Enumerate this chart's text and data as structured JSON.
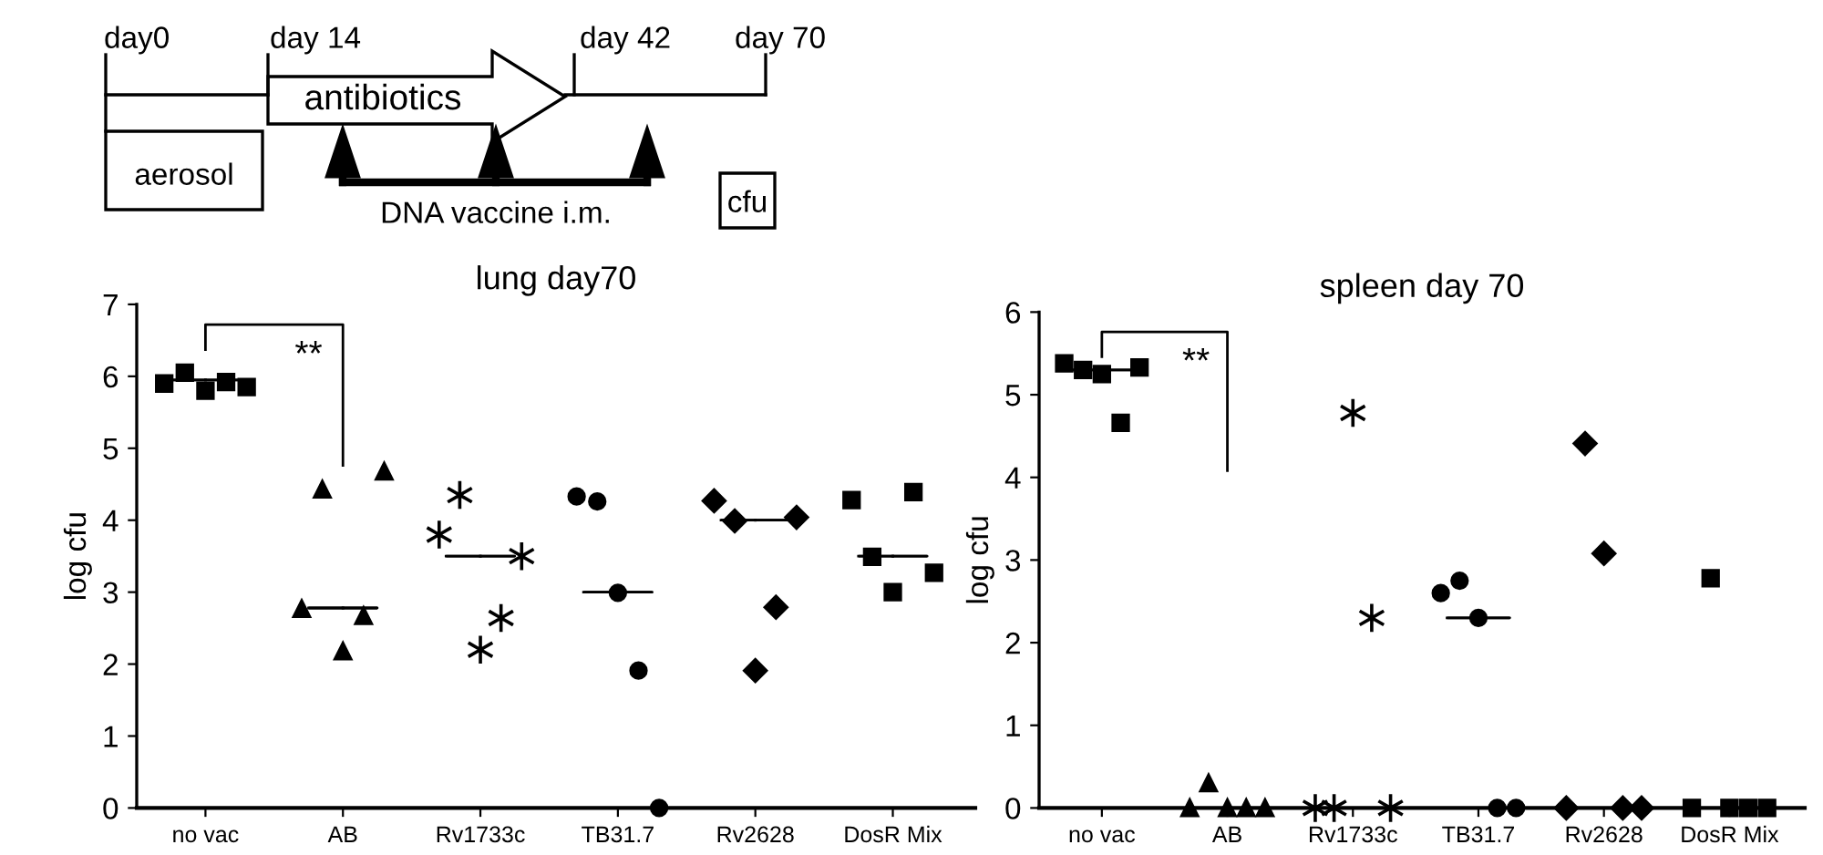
{
  "chart_data": [
    {
      "type": "other",
      "annotations": [
        "day0",
        "day 14",
        "day 42",
        "day 70",
        "antibiotics",
        "aerosol",
        "cfu",
        "DNA vaccine i.m."
      ]
    },
    {
      "type": "scatter",
      "title": "lung day70",
      "ylabel": "log cfu",
      "categories": [
        "no vac",
        "AB",
        "Rv1733c",
        "TB31.7",
        "Rv2628",
        "DosR Mix"
      ],
      "ylim": [
        0,
        7
      ],
      "yticks": [
        0,
        1,
        2,
        3,
        4,
        5,
        6,
        7
      ],
      "grid": false,
      "annotations": [
        "**"
      ],
      "series": [
        {
          "x": [
            "no vac",
            "no vac",
            "no vac",
            "no vac",
            "no vac"
          ],
          "values": [
            5.9,
            6.05,
            5.8,
            5.92,
            5.85
          ],
          "marker": "square",
          "color": "#000000"
        },
        {
          "x": [
            "AB",
            "AB",
            "AB",
            "AB",
            "AB"
          ],
          "values": [
            2.77,
            4.43,
            2.18,
            2.67,
            4.68
          ],
          "marker": "triangle",
          "color": "#000000"
        },
        {
          "x": [
            "Rv1733c",
            "Rv1733c",
            "Rv1733c",
            "Rv1733c",
            "Rv1733c"
          ],
          "values": [
            3.8,
            4.35,
            2.2,
            2.64,
            3.5
          ],
          "marker": "cross",
          "color": "#000000"
        },
        {
          "x": [
            "TB31.7",
            "TB31.7",
            "TB31.7",
            "TB31.7",
            "TB31.7"
          ],
          "values": [
            4.33,
            4.26,
            2.99,
            1.91,
            0
          ],
          "marker": "circle",
          "color": "#000000"
        },
        {
          "x": [
            "Rv2628",
            "Rv2628",
            "Rv2628",
            "Rv2628",
            "Rv2628"
          ],
          "values": [
            4.27,
            3.99,
            1.91,
            2.79,
            4.04
          ],
          "marker": "diamond",
          "color": "#000000"
        },
        {
          "x": [
            "DosR Mix",
            "DosR Mix",
            "DosR Mix",
            "DosR Mix",
            "DosR Mix"
          ],
          "values": [
            4.28,
            3.49,
            3.0,
            4.39,
            3.27
          ],
          "marker": "square",
          "color": "#000000"
        },
        {
          "type": "box",
          "color": "#000000",
          "boxes": [
            {
              "low": 5.95,
              "q1": 5.95,
              "median": 5.95,
              "q3": 5.95,
              "high": 5.95
            },
            {
              "low": 2.78,
              "q1": 2.78,
              "median": 2.78,
              "q3": 2.78,
              "high": 2.78
            },
            {
              "low": 3.5,
              "q1": 3.5,
              "median": 3.5,
              "q3": 3.5,
              "high": 3.5
            },
            {
              "low": 3.0,
              "q1": 3.0,
              "median": 3.0,
              "q3": 3.0,
              "high": 3.0
            },
            {
              "low": 4.0,
              "q1": 4.0,
              "median": 4.0,
              "q3": 4.0,
              "high": 4.0
            },
            {
              "low": 3.5,
              "q1": 3.5,
              "median": 3.5,
              "q3": 3.5,
              "high": 3.5
            }
          ]
        }
      ]
    },
    {
      "type": "scatter",
      "title": "spleen day 70",
      "ylabel": "log cfu",
      "categories": [
        "no vac",
        "AB",
        "Rv1733c",
        "TB31.7",
        "Rv2628",
        "DosR Mix"
      ],
      "ylim": [
        0,
        6
      ],
      "yticks": [
        0,
        1,
        2,
        3,
        4,
        5,
        6
      ],
      "grid": false,
      "annotations": [
        "**"
      ],
      "series": [
        {
          "x": [
            "no vac",
            "no vac",
            "no vac",
            "no vac",
            "no vac"
          ],
          "values": [
            5.38,
            5.3,
            5.25,
            4.66,
            5.33
          ],
          "marker": "square",
          "color": "#000000"
        },
        {
          "x": [
            "AB",
            "AB",
            "AB",
            "AB",
            "AB"
          ],
          "values": [
            0,
            0.3,
            0,
            0,
            0
          ],
          "marker": "triangle",
          "color": "#000000"
        },
        {
          "x": [
            "Rv1733c",
            "Rv1733c",
            "Rv1733c",
            "Rv1733c",
            "Rv1733c"
          ],
          "values": [
            0,
            0,
            4.78,
            2.3,
            0
          ],
          "marker": "cross",
          "color": "#000000"
        },
        {
          "x": [
            "TB31.7",
            "TB31.7",
            "TB31.7",
            "TB31.7",
            "TB31.7"
          ],
          "values": [
            2.6,
            2.75,
            2.3,
            0,
            0
          ],
          "marker": "circle",
          "color": "#000000"
        },
        {
          "x": [
            "Rv2628",
            "Rv2628",
            "Rv2628",
            "Rv2628",
            "Rv2628"
          ],
          "values": [
            0,
            4.41,
            3.08,
            0,
            0
          ],
          "marker": "diamond",
          "color": "#000000"
        },
        {
          "x": [
            "DosR Mix",
            "DosR Mix",
            "DosR Mix",
            "DosR Mix",
            "DosR Mix"
          ],
          "values": [
            0,
            2.78,
            0,
            0,
            0
          ],
          "marker": "square",
          "color": "#000000"
        },
        {
          "type": "box",
          "color": "#000000",
          "boxes": [
            {
              "low": 5.3,
              "q1": 5.3,
              "median": 5.3,
              "q3": 5.3,
              "high": 5.3
            },
            null,
            null,
            {
              "low": 2.3,
              "q1": 2.3,
              "median": 2.3,
              "q3": 2.3,
              "high": 2.3
            },
            null,
            null
          ]
        }
      ]
    }
  ]
}
